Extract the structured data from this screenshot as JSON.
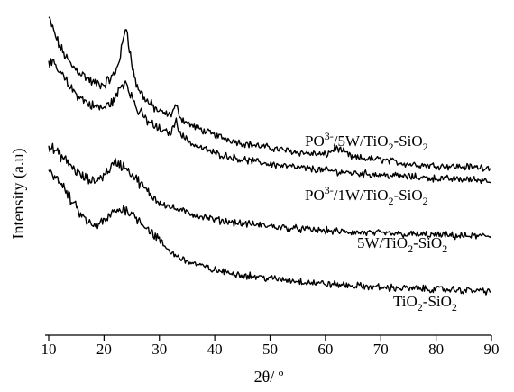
{
  "chart_data": {
    "type": "line",
    "xlabel": "2θ/ º",
    "ylabel": "Intensity (a.u)",
    "xlim": [
      10,
      90
    ],
    "xticks": [
      "10",
      "20",
      "30",
      "40",
      "50",
      "60",
      "70",
      "80",
      "90"
    ],
    "y_ticks_shown": false,
    "grid": false,
    "legend": "inline labels above each trace",
    "series": [
      {
        "label_main": "PO",
        "label_sup": "3-",
        "label_rest": "/5W/TiO",
        "label_sub": "2",
        "label_rest2": "-SiO",
        "label_sub2": "2",
        "x": [
          10,
          12,
          14,
          16,
          18,
          20,
          22,
          23,
          24,
          25,
          26,
          28,
          30,
          32,
          33,
          34,
          36,
          40,
          45,
          50,
          55,
          60,
          62,
          65,
          70,
          75,
          80,
          85,
          90
        ],
        "y": [
          352,
          320,
          300,
          290,
          280,
          278,
          290,
          312,
          345,
          300,
          275,
          258,
          248,
          244,
          255,
          240,
          232,
          222,
          213,
          208,
          203,
          200,
          208,
          197,
          195,
          190,
          188,
          187,
          186
        ]
      },
      {
        "label_main": "PO",
        "label_sup": "3-",
        "label_rest": "/1W/TiO",
        "label_sub": "2",
        "label_rest2": "-SiO",
        "label_sub2": "2",
        "x": [
          10,
          12,
          14,
          16,
          18,
          20,
          22,
          23,
          24,
          25,
          26,
          28,
          30,
          32,
          33,
          34,
          36,
          40,
          45,
          50,
          55,
          60,
          65,
          70,
          75,
          80,
          85,
          90
        ],
        "y": [
          305,
          292,
          274,
          262,
          254,
          252,
          262,
          276,
          282,
          265,
          250,
          237,
          228,
          224,
          238,
          222,
          212,
          202,
          195,
          190,
          186,
          183,
          180,
          178,
          176,
          174,
          173,
          172
        ]
      },
      {
        "label_main": "5W/TiO",
        "label_sup": "",
        "label_rest": "",
        "label_sub": "2",
        "label_rest2": "-SiO",
        "label_sub2": "2",
        "x": [
          10,
          12,
          14,
          16,
          18,
          20,
          22,
          24,
          26,
          28,
          30,
          32,
          35,
          40,
          45,
          50,
          55,
          60,
          65,
          70,
          75,
          80,
          85,
          90
        ],
        "y": [
          210,
          200,
          188,
          176,
          170,
          178,
          192,
          186,
          172,
          158,
          148,
          142,
          136,
          128,
          124,
          121,
          118,
          116,
          114,
          113,
          112,
          111,
          110,
          110
        ]
      },
      {
        "label_main": "TiO",
        "label_sup": "",
        "label_rest": "",
        "label_sub": "2",
        "label_rest2": "-SiO",
        "label_sub2": "2",
        "x": [
          10,
          12,
          14,
          16,
          18,
          20,
          22,
          24,
          26,
          28,
          30,
          32,
          35,
          40,
          45,
          50,
          55,
          60,
          65,
          70,
          75,
          80,
          85,
          90
        ],
        "y": [
          185,
          170,
          150,
          132,
          120,
          126,
          138,
          140,
          130,
          118,
          105,
          92,
          82,
          72,
          67,
          63,
          60,
          57,
          55,
          53,
          52,
          51,
          50,
          49
        ]
      }
    ]
  }
}
